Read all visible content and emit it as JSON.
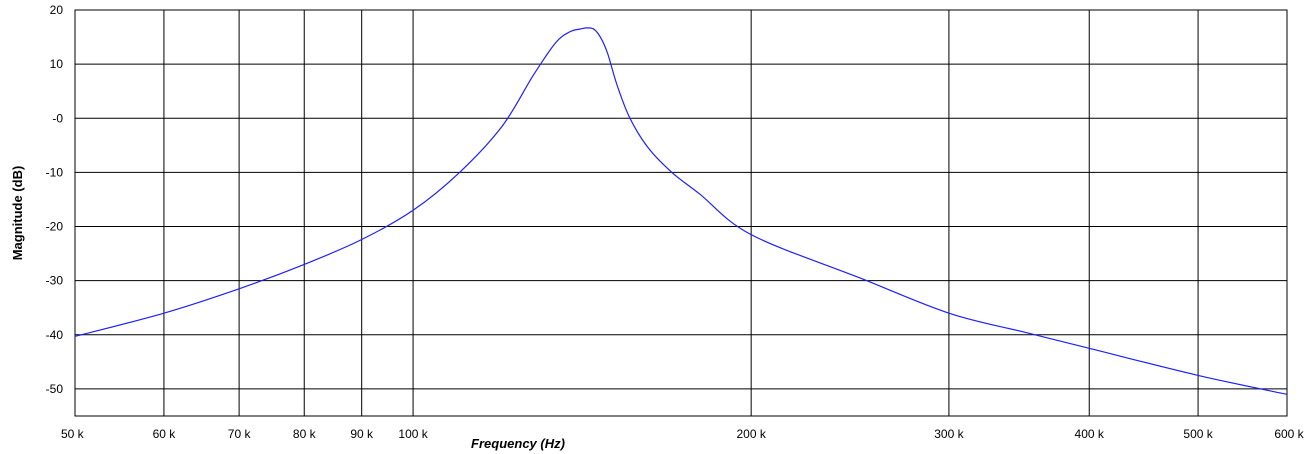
{
  "chart_data": {
    "type": "line",
    "xlabel": "Frequency (Hz)",
    "ylabel": "Magnitude (dB)",
    "x_scale": "log",
    "xlim": [
      50000,
      600000
    ],
    "ylim": [
      -55,
      20
    ],
    "grid": true,
    "line_color": "#1f1fff",
    "x_ticks": [
      {
        "value": 50000,
        "label": "50 k"
      },
      {
        "value": 60000,
        "label": "60 k"
      },
      {
        "value": 70000,
        "label": "70 k"
      },
      {
        "value": 80000,
        "label": "80 k"
      },
      {
        "value": 90000,
        "label": "90 k"
      },
      {
        "value": 100000,
        "label": "100 k"
      },
      {
        "value": 200000,
        "label": "200 k"
      },
      {
        "value": 300000,
        "label": "300 k"
      },
      {
        "value": 400000,
        "label": "400 k"
      },
      {
        "value": 500000,
        "label": "500 k"
      },
      {
        "value": 600000,
        "label": "600 k"
      }
    ],
    "y_ticks": [
      {
        "value": 20,
        "label": "20"
      },
      {
        "value": 10,
        "label": "10"
      },
      {
        "value": 0,
        "label": "-0"
      },
      {
        "value": -10,
        "label": "-10"
      },
      {
        "value": -20,
        "label": "-20"
      },
      {
        "value": -30,
        "label": "-30"
      },
      {
        "value": -40,
        "label": "-40"
      },
      {
        "value": -50,
        "label": "-50"
      }
    ],
    "series": [
      {
        "x": [
          50000,
          60000,
          70000,
          80000,
          90000,
          100000,
          110000,
          120000,
          128000,
          134000,
          138000,
          141000,
          143000,
          145000,
          147000,
          149000,
          152000,
          156000,
          162000,
          170000,
          180000,
          200000,
          250000,
          300000,
          350000,
          400000,
          500000,
          600000
        ],
        "y": [
          -40.3,
          -36.0,
          -31.5,
          -27.0,
          -22.4,
          -17.0,
          -10.0,
          -1.5,
          8.0,
          14.0,
          16.0,
          16.5,
          16.7,
          16.4,
          14.8,
          12.0,
          6.0,
          0.0,
          -5.5,
          -10.0,
          -14.0,
          -21.5,
          -29.5,
          -36.0,
          -39.5,
          -42.5,
          -47.5,
          -51.0
        ]
      }
    ]
  }
}
